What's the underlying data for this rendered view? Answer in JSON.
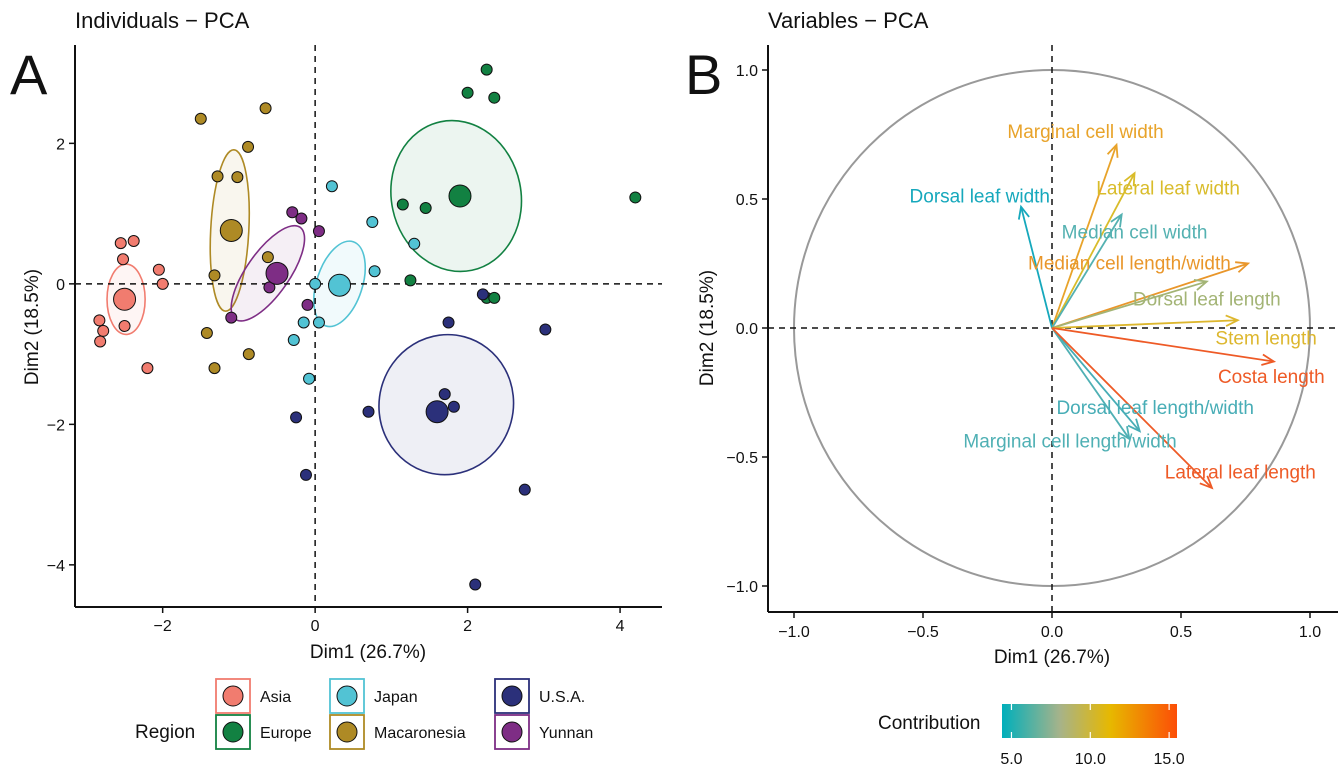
{
  "chart_data": [
    {
      "type": "scatter",
      "panel": "A",
      "title": "Individuals − PCA",
      "xlabel": "Dim1 (26.7%)",
      "ylabel": "Dim2 (18.5%)",
      "xlim": [
        -3.15,
        4.55
      ],
      "ylim": [
        -4.6,
        3.4
      ],
      "xticks": [
        {
          "v": -2,
          "label": "−2"
        },
        {
          "v": 0,
          "label": "0"
        },
        {
          "v": 2,
          "label": "2"
        },
        {
          "v": 4,
          "label": "4"
        }
      ],
      "yticks": [
        {
          "v": 2,
          "label": "2"
        },
        {
          "v": 0,
          "label": "0"
        },
        {
          "v": -2,
          "label": "−2"
        },
        {
          "v": -4,
          "label": "−4"
        }
      ],
      "reference_lines": {
        "x": 0,
        "y": 0,
        "style": "dashed"
      },
      "grid": false,
      "legend": {
        "title": "Region",
        "position": "bottom"
      },
      "series": [
        {
          "name": "Asia",
          "color": "#F17C6F",
          "points": [
            [
              -2.55,
              0.58
            ],
            [
              -2.38,
              0.61
            ],
            [
              -2.52,
              0.35
            ],
            [
              -2.05,
              0.2
            ],
            [
              -2.0,
              0.0
            ],
            [
              -2.83,
              -0.52
            ],
            [
              -2.78,
              -0.67
            ],
            [
              -2.82,
              -0.82
            ],
            [
              -2.5,
              -0.6
            ],
            [
              -2.2,
              -1.2
            ]
          ],
          "centroid": [
            -2.5,
            -0.22
          ],
          "ellipse": {
            "cx": -2.48,
            "cy": -0.22,
            "rx": 0.25,
            "ry": 0.5,
            "rot": 0
          }
        },
        {
          "name": "Europe",
          "color": "#128142",
          "points": [
            [
              2.25,
              3.05
            ],
            [
              2.0,
              2.72
            ],
            [
              2.35,
              2.65
            ],
            [
              4.2,
              1.23
            ],
            [
              1.15,
              1.13
            ],
            [
              1.45,
              1.08
            ],
            [
              1.25,
              0.05
            ],
            [
              2.25,
              -0.2
            ],
            [
              2.35,
              -0.2
            ]
          ],
          "centroid": [
            1.9,
            1.25
          ],
          "ellipse": {
            "cx": 1.85,
            "cy": 1.25,
            "rx": 0.85,
            "ry": 1.08,
            "rot": -12
          }
        },
        {
          "name": "Japan",
          "color": "#52C3D4",
          "points": [
            [
              0.22,
              1.39
            ],
            [
              0.75,
              0.88
            ],
            [
              1.3,
              0.57
            ],
            [
              0.78,
              0.18
            ],
            [
              0.0,
              0.0
            ],
            [
              -0.15,
              -0.55
            ],
            [
              0.05,
              -0.55
            ],
            [
              -0.28,
              -0.8
            ],
            [
              -0.08,
              -1.35
            ]
          ],
          "centroid": [
            0.32,
            -0.02
          ],
          "ellipse": {
            "cx": 0.32,
            "cy": 0.0,
            "rx": 0.3,
            "ry": 0.63,
            "rot": 18
          }
        },
        {
          "name": "Macaronesia",
          "color": "#AE8A25",
          "points": [
            [
              -1.5,
              2.35
            ],
            [
              -0.65,
              2.5
            ],
            [
              -0.88,
              1.95
            ],
            [
              -1.28,
              1.53
            ],
            [
              -1.02,
              1.52
            ],
            [
              -1.32,
              0.12
            ],
            [
              -0.62,
              0.38
            ],
            [
              -1.42,
              -0.7
            ],
            [
              -0.87,
              -1.0
            ],
            [
              -1.32,
              -1.2
            ]
          ],
          "centroid": [
            -1.1,
            0.76
          ],
          "ellipse": {
            "cx": -1.12,
            "cy": 0.76,
            "rx": 0.25,
            "ry": 1.15,
            "rot": 3
          }
        },
        {
          "name": "U.S.A.",
          "color": "#2B307A",
          "points": [
            [
              2.2,
              -0.15
            ],
            [
              1.75,
              -0.55
            ],
            [
              3.02,
              -0.65
            ],
            [
              1.7,
              -1.57
            ],
            [
              1.82,
              -1.75
            ],
            [
              0.7,
              -1.82
            ],
            [
              -0.25,
              -1.9
            ],
            [
              -0.12,
              -2.72
            ],
            [
              2.75,
              -2.93
            ],
            [
              2.1,
              -4.28
            ]
          ],
          "centroid": [
            1.6,
            -1.82
          ],
          "ellipse": {
            "cx": 1.72,
            "cy": -1.72,
            "rx": 0.88,
            "ry": 1.0,
            "rot": 15
          }
        },
        {
          "name": "Yunnan",
          "color": "#7E2D85",
          "points": [
            [
              -0.3,
              1.02
            ],
            [
              -0.18,
              0.93
            ],
            [
              0.05,
              0.75
            ],
            [
              -0.6,
              -0.05
            ],
            [
              -1.1,
              -0.48
            ],
            [
              -0.1,
              -0.3
            ]
          ],
          "centroid": [
            -0.5,
            0.15
          ],
          "ellipse": {
            "cx": -0.62,
            "cy": 0.15,
            "rx": 0.28,
            "ry": 0.8,
            "rot": 35
          }
        }
      ]
    },
    {
      "type": "scatter",
      "panel": "B",
      "title": "Variables − PCA",
      "xlabel": "Dim1 (26.7%)",
      "ylabel": "Dim2 (18.5%)",
      "xlim": [
        -1.11,
        1.11
      ],
      "ylim": [
        -1.11,
        1.11
      ],
      "xticks": [
        {
          "v": -1.0,
          "label": "−1.0"
        },
        {
          "v": -0.5,
          "label": "−0.5"
        },
        {
          "v": 0.0,
          "label": "0.0"
        },
        {
          "v": 0.5,
          "label": "0.5"
        },
        {
          "v": 1.0,
          "label": "1.0"
        }
      ],
      "yticks": [
        {
          "v": 1.0,
          "label": "1.0"
        },
        {
          "v": 0.5,
          "label": "0.5"
        },
        {
          "v": 0.0,
          "label": "0.0"
        },
        {
          "v": -0.5,
          "label": "−0.5"
        },
        {
          "v": -1.0,
          "label": "−1.0"
        }
      ],
      "reference_lines": {
        "x": 0,
        "y": 0,
        "style": "dashed"
      },
      "correlation_circle": {
        "radius": 1.0,
        "color": "#999999"
      },
      "grid": false,
      "vectors": [
        {
          "name": "Marginal cell width",
          "x": 0.25,
          "y": 0.71,
          "contribution": 11.8,
          "color": "#E8A32A",
          "label_x": 0.13,
          "label_y": 0.76
        },
        {
          "name": "Lateral leaf width",
          "x": 0.32,
          "y": 0.6,
          "contribution": 10.6,
          "color": "#D9BC2A",
          "label_x": 0.45,
          "label_y": 0.54
        },
        {
          "name": "Dorsal leaf width",
          "x": -0.12,
          "y": 0.47,
          "contribution": 5.2,
          "color": "#16A8BC",
          "label_x": -0.28,
          "label_y": 0.51
        },
        {
          "name": "Median cell width",
          "x": 0.27,
          "y": 0.44,
          "contribution": 6.8,
          "color": "#54B1B1",
          "label_x": 0.32,
          "label_y": 0.37
        },
        {
          "name": "Median cell length/width",
          "x": 0.76,
          "y": 0.25,
          "contribution": 12.4,
          "color": "#E9962A",
          "label_x": 0.3,
          "label_y": 0.25
        },
        {
          "name": "Dorsal leaf length",
          "x": 0.6,
          "y": 0.18,
          "contribution": 8.5,
          "color": "#A3B475",
          "label_x": 0.6,
          "label_y": 0.11
        },
        {
          "name": "Stem length",
          "x": 0.72,
          "y": 0.03,
          "contribution": 10.5,
          "color": "#DDB72E",
          "label_x": 0.83,
          "label_y": -0.04
        },
        {
          "name": "Costa length",
          "x": 0.86,
          "y": -0.13,
          "contribution": 15.0,
          "color": "#EE5A26",
          "label_x": 0.85,
          "label_y": -0.19
        },
        {
          "name": "Dorsal leaf length/width",
          "x": 0.34,
          "y": -0.4,
          "contribution": 6.5,
          "color": "#47ADB6",
          "label_x": 0.4,
          "label_y": -0.31
        },
        {
          "name": "Marginal cell length/width",
          "x": 0.3,
          "y": -0.43,
          "contribution": 6.3,
          "color": "#4FB0B4",
          "label_x": 0.07,
          "label_y": -0.44
        },
        {
          "name": "Lateral leaf length",
          "x": 0.62,
          "y": -0.62,
          "contribution": 14.5,
          "color": "#EE5A26",
          "label_x": 0.73,
          "label_y": -0.56
        }
      ],
      "legend": {
        "title": "Contribution",
        "position": "bottom",
        "type": "colorbar",
        "range": [
          4.4,
          15.5
        ],
        "ticks": [
          {
            "v": 5.0,
            "label": "5.0"
          },
          {
            "v": 10.0,
            "label": "10.0"
          },
          {
            "v": 15.0,
            "label": "15.0"
          }
        ],
        "colors": [
          "#00AFBB",
          "#A6B38A",
          "#E7B800",
          "#FC4E07"
        ]
      }
    }
  ],
  "panel_letters": [
    "A",
    "B"
  ]
}
